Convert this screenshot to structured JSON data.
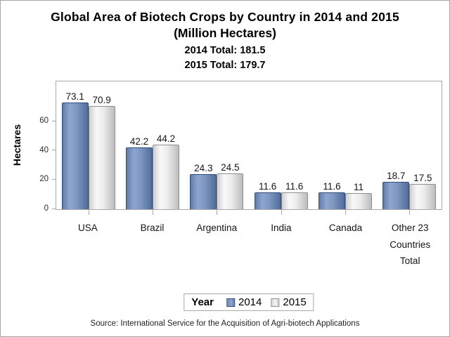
{
  "title": {
    "line1": "Global Area of Biotech Crops by Country in 2014 and 2015",
    "line2": "(Million Hectares)"
  },
  "totals": {
    "t2014": "2014 Total: 181.5",
    "t2015": "2015 Total: 179.7"
  },
  "axis": {
    "ylabel": "Hectares"
  },
  "legend": {
    "title": "Year",
    "items": [
      {
        "label": "2014",
        "color": "#7e98c2",
        "border": "#2f4d7a"
      },
      {
        "label": "2015",
        "color": "#ededed",
        "border": "#8f8f8f"
      }
    ]
  },
  "source": "Source: International Service for the Acquisition of Agri-biotech Applications",
  "chart_data": {
    "type": "bar",
    "title": "Global Area of Biotech Crops by Country in 2014 and 2015 (Million Hectares)",
    "subtitles": [
      "2014 Total: 181.5",
      "2015 Total: 179.7"
    ],
    "categories": [
      "USA",
      "Brazil",
      "Argentina",
      "India",
      "Canada",
      "Other 23 Countries Total"
    ],
    "series": [
      {
        "name": "2014",
        "color": "#7e98c2",
        "values": [
          73.1,
          42.2,
          24.3,
          11.6,
          11.6,
          18.7
        ]
      },
      {
        "name": "2015",
        "color": "#ededed",
        "values": [
          70.9,
          44.2,
          24.5,
          11.6,
          11,
          17.5
        ]
      }
    ],
    "xlabel": "",
    "ylabel": "Hectares",
    "yticks": [
      0,
      20,
      40,
      60
    ],
    "ylim": [
      0,
      87.6
    ],
    "grid": false,
    "bar_value_labels": true,
    "legend_title": "Year",
    "legend_position": "bottom",
    "source_note": "Source: International Service for the Acquisition of Agri-biotech Applications"
  }
}
